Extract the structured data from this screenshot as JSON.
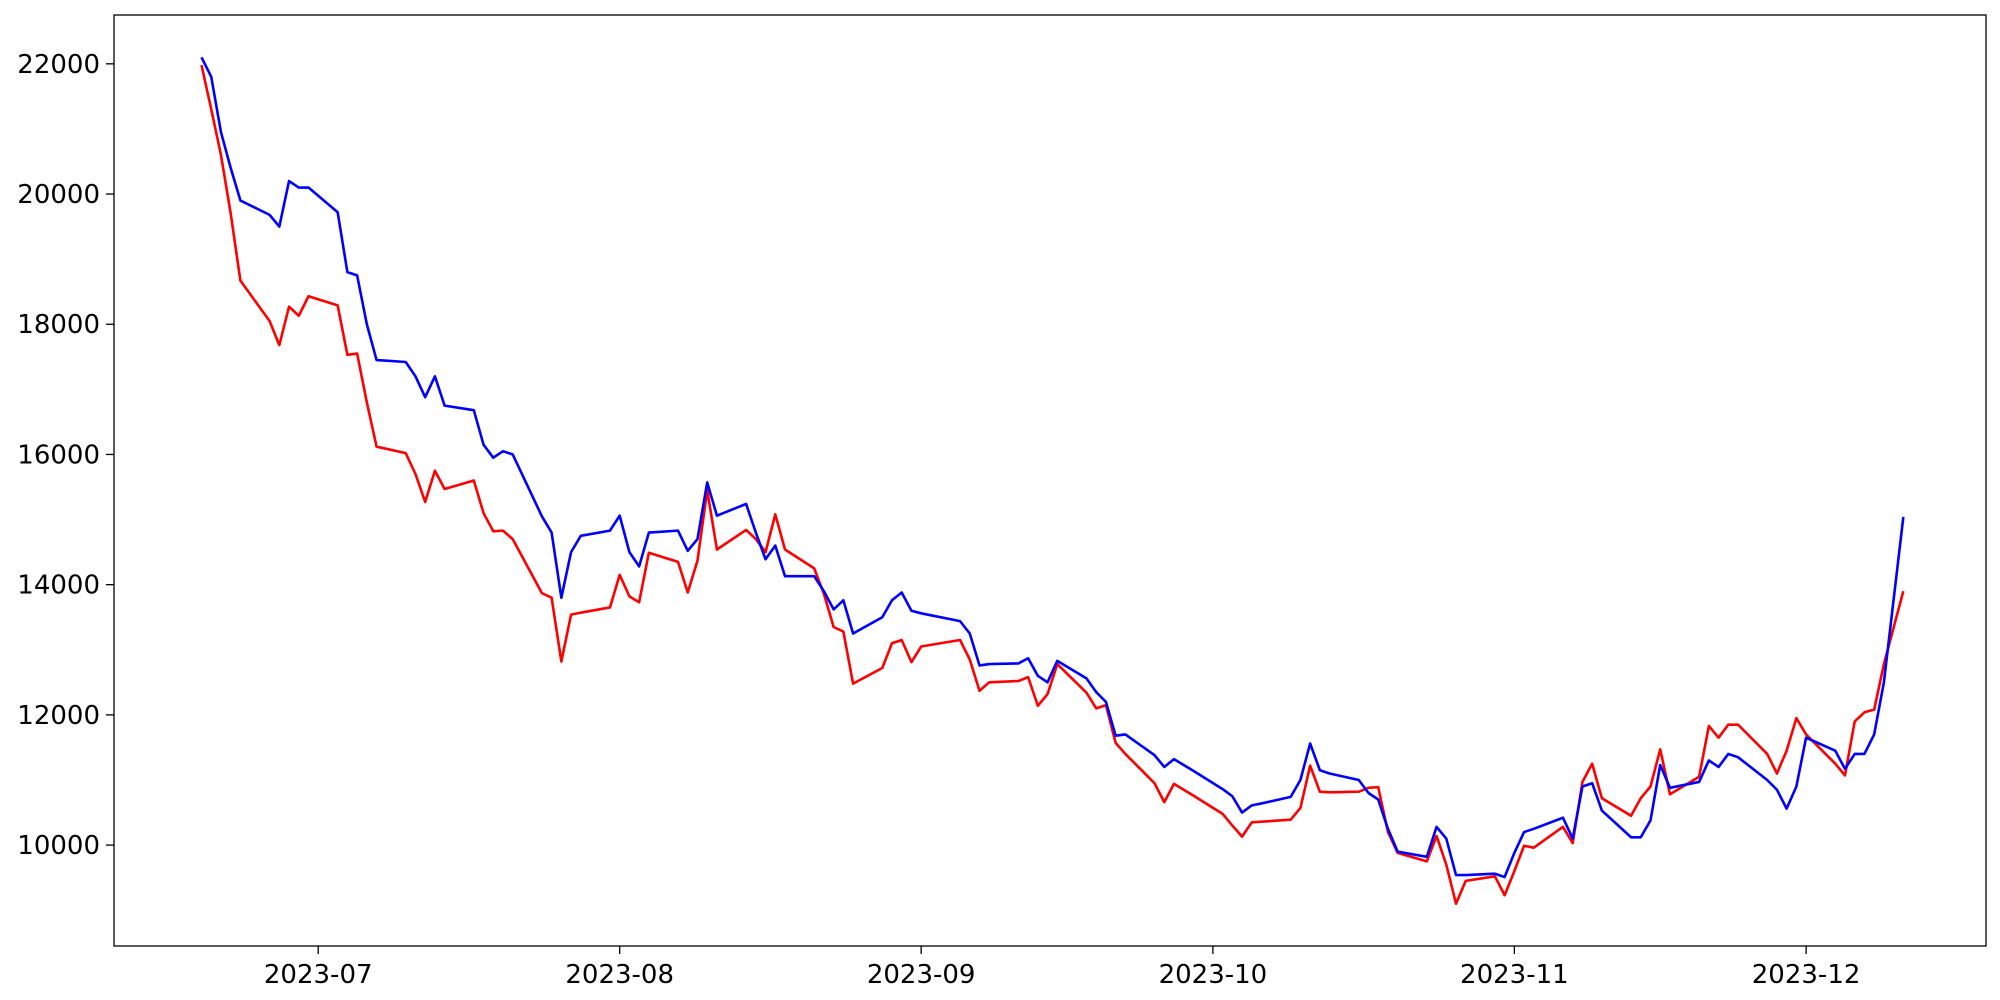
{
  "chart_data": {
    "type": "line",
    "x": [
      170,
      171,
      172,
      173,
      174,
      177,
      178,
      179,
      180,
      181,
      184,
      185,
      186,
      187,
      188,
      191,
      192,
      193,
      194,
      195,
      198,
      199,
      200,
      201,
      202,
      205,
      206,
      207,
      208,
      209,
      212,
      213,
      214,
      215,
      216,
      219,
      220,
      221,
      222,
      223,
      226,
      227,
      228,
      229,
      230,
      233,
      234,
      235,
      236,
      237,
      240,
      241,
      242,
      243,
      244,
      248,
      249,
      250,
      251,
      254,
      255,
      256,
      257,
      258,
      261,
      262,
      263,
      264,
      265,
      268,
      269,
      270,
      271,
      272,
      275,
      276,
      277,
      278,
      279,
      282,
      283,
      284,
      285,
      286,
      289,
      290,
      291,
      292,
      293,
      296,
      297,
      298,
      299,
      300,
      303,
      304,
      305,
      306,
      307,
      310,
      311,
      312,
      313,
      314,
      317,
      318,
      319,
      320,
      321,
      324,
      325,
      326,
      327,
      328,
      331,
      332,
      333,
      334,
      335,
      338,
      339,
      340,
      341,
      342,
      343,
      345
    ],
    "series": [
      {
        "color": "#ff0000",
        "values": [
          21980,
          21300,
          20600,
          19700,
          18670,
          18050,
          17680,
          18270,
          18130,
          18430,
          18290,
          17530,
          17550,
          16800,
          16120,
          16020,
          15700,
          15270,
          15750,
          15470,
          15600,
          15100,
          14820,
          14830,
          14700,
          13870,
          13800,
          12820,
          13540,
          13570,
          13650,
          14150,
          13820,
          13730,
          14490,
          14350,
          13880,
          14370,
          15450,
          14540,
          14840,
          14700,
          14500,
          15080,
          14540,
          14250,
          13860,
          13350,
          13280,
          12480,
          12720,
          13100,
          13150,
          12810,
          13050,
          13150,
          12850,
          12370,
          12500,
          12520,
          12580,
          12140,
          12320,
          12780,
          12340,
          12100,
          12150,
          11570,
          11400,
          10950,
          10660,
          10940,
          10850,
          10760,
          10480,
          10300,
          10130,
          10350,
          10360,
          10390,
          10570,
          11220,
          10820,
          10810,
          10820,
          10880,
          10890,
          10200,
          9880,
          9750,
          10140,
          9700,
          9100,
          9450,
          9520,
          9230,
          9600,
          9990,
          9960,
          10280,
          10030,
          10970,
          11250,
          10720,
          10450,
          10720,
          10900,
          11470,
          10780,
          11050,
          11830,
          11650,
          11850,
          11850,
          11400,
          11100,
          11450,
          11950,
          11700,
          11250,
          11070,
          11900,
          12040,
          12080,
          12780,
          13900
        ]
      },
      {
        "color": "#0000ff",
        "values": [
          22100,
          21800,
          20950,
          20400,
          19900,
          19680,
          19500,
          20200,
          20100,
          20100,
          19720,
          18800,
          18750,
          18000,
          17450,
          17420,
          17200,
          16880,
          17200,
          16750,
          16680,
          16150,
          15950,
          16050,
          16000,
          15050,
          14800,
          13800,
          14500,
          14750,
          14830,
          15060,
          14500,
          14280,
          14800,
          14830,
          14520,
          14700,
          15570,
          15060,
          15240,
          14800,
          14390,
          14600,
          14130,
          14130,
          13900,
          13620,
          13760,
          13250,
          13500,
          13760,
          13880,
          13600,
          13560,
          13440,
          13250,
          12760,
          12780,
          12790,
          12870,
          12600,
          12500,
          12830,
          12560,
          12350,
          12200,
          11680,
          11700,
          11380,
          11200,
          11320,
          11230,
          11140,
          10860,
          10750,
          10500,
          10610,
          10640,
          10740,
          11000,
          11560,
          11150,
          11100,
          11000,
          10800,
          10700,
          10250,
          9900,
          9820,
          10280,
          10100,
          9540,
          9540,
          9560,
          9510,
          9880,
          10200,
          10250,
          10420,
          10100,
          10900,
          10950,
          10530,
          10120,
          10120,
          10380,
          11230,
          10880,
          10970,
          11300,
          11200,
          11400,
          11350,
          11000,
          10850,
          10560,
          10900,
          11650,
          11450,
          11170,
          11400,
          11400,
          11700,
          12500,
          15040
        ]
      }
    ],
    "xlim": [
      161,
      353.5
    ],
    "xticks": [
      {
        "value": 182,
        "label": "2023-07"
      },
      {
        "value": 213,
        "label": "2023-08"
      },
      {
        "value": 244,
        "label": "2023-09"
      },
      {
        "value": 274,
        "label": "2023-10"
      },
      {
        "value": 305,
        "label": "2023-11"
      },
      {
        "value": 335,
        "label": "2023-12"
      }
    ],
    "ylim": [
      8450,
      22750
    ],
    "yticks": [
      10000,
      12000,
      14000,
      16000,
      18000,
      20000,
      22000
    ],
    "grid": false
  }
}
